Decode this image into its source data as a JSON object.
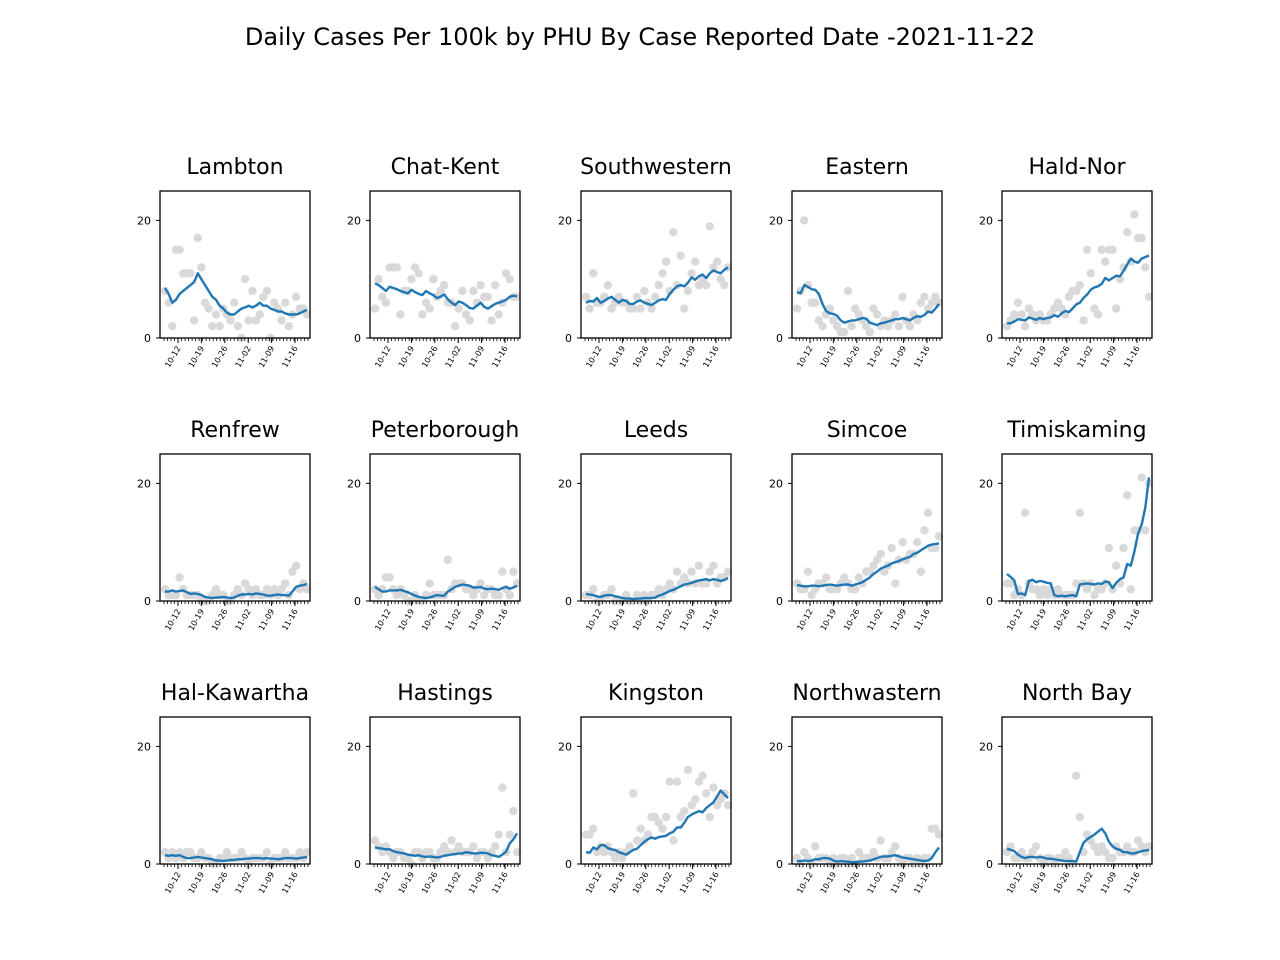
{
  "figure": {
    "title": "Daily Cases Per 100k by PHU By Case Reported Date -2021-11-22",
    "colors": {
      "line": "#1f77b4",
      "scatter": "#d9d9d9",
      "axes": "#000000",
      "background": "#ffffff"
    }
  },
  "chart_data": [
    {
      "type": "scatter+line",
      "title": "Lambton",
      "x_tick_labels": [
        "10-12",
        "10-19",
        "10-26",
        "11-02",
        "11-09",
        "11-16"
      ],
      "ylim": [
        0,
        25
      ],
      "y_ticks": [
        0,
        20
      ],
      "points": [
        8,
        6,
        2,
        15,
        15,
        11,
        11,
        11,
        3,
        17,
        12,
        6,
        5,
        2,
        4,
        2,
        5,
        4,
        3,
        6,
        2,
        0,
        10,
        3,
        8,
        3,
        4,
        7,
        8,
        0,
        6,
        5,
        3,
        6,
        2,
        4,
        7,
        5,
        5,
        4
      ],
      "rolling_avg": [
        8.5,
        7.5,
        6,
        6.5,
        7.5,
        8,
        8.5,
        9,
        9.5,
        11,
        10,
        9,
        8,
        7,
        6.5,
        5.5,
        5,
        4.3,
        4,
        4,
        4.5,
        5,
        5.2,
        5.5,
        5.2,
        5.5,
        6,
        5.5,
        5.5,
        5,
        4.8,
        4.5,
        4.5,
        4.2,
        4,
        4,
        4,
        4.2,
        4.5,
        4.8
      ]
    },
    {
      "type": "scatter+line",
      "title": "Chat-Kent",
      "x_tick_labels": [
        "10-12",
        "10-19",
        "10-26",
        "11-02",
        "11-09",
        "11-16"
      ],
      "ylim": [
        0,
        25
      ],
      "y_ticks": [
        0,
        20
      ],
      "points": [
        5,
        10,
        7,
        6,
        12,
        12,
        12,
        4,
        8,
        8,
        10,
        12,
        11,
        4,
        6,
        5,
        10,
        7,
        8,
        9,
        6,
        6,
        2,
        5,
        8,
        4,
        3,
        8,
        6,
        9,
        7,
        7,
        3,
        9,
        4,
        6,
        11,
        10,
        7,
        7
      ],
      "rolling_avg": [
        9.3,
        9,
        8.5,
        8,
        8.7,
        8.5,
        8.3,
        8,
        7.8,
        7.6,
        8.2,
        7.8,
        7.5,
        7.3,
        8,
        7.6,
        7.3,
        6.8,
        7,
        7.4,
        6.6,
        6,
        5.6,
        6.2,
        6,
        5.6,
        5.1,
        5,
        5.5,
        6,
        5.3,
        5,
        5.4,
        5.8,
        6,
        6.2,
        6.5,
        7,
        7.2,
        7.1
      ]
    },
    {
      "type": "scatter+line",
      "title": "Southwestern",
      "x_tick_labels": [
        "10-12",
        "10-19",
        "10-26",
        "11-02",
        "11-09",
        "11-16"
      ],
      "ylim": [
        0,
        25
      ],
      "y_ticks": [
        0,
        20
      ],
      "points": [
        7,
        5,
        11,
        6,
        6,
        7,
        9,
        5,
        6,
        7,
        6,
        6,
        5,
        5,
        7,
        5,
        8,
        6,
        5,
        7,
        9,
        11,
        13,
        8,
        18,
        9,
        14,
        5,
        8,
        11,
        13,
        9,
        10,
        9,
        19,
        12,
        13,
        10,
        9,
        12
      ],
      "rolling_avg": [
        6,
        6.3,
        6.2,
        6.8,
        6,
        6.3,
        6.7,
        7,
        6.5,
        6,
        6.5,
        6.3,
        5.8,
        5.8,
        6.2,
        6.4,
        6,
        5.8,
        5.6,
        6,
        6.4,
        6.6,
        6.5,
        7.5,
        8.2,
        8.8,
        9,
        8.8,
        9.4,
        10.3,
        9.9,
        10.5,
        10.8,
        10.2,
        11,
        11.5,
        11.2,
        11,
        11.6,
        12
      ]
    },
    {
      "type": "scatter+line",
      "title": "Eastern",
      "x_tick_labels": [
        "10-12",
        "10-19",
        "10-26",
        "11-02",
        "11-09",
        "11-16"
      ],
      "ylim": [
        0,
        25
      ],
      "y_ticks": [
        0,
        20
      ],
      "points": [
        5,
        8,
        20,
        9,
        6,
        6,
        3,
        2,
        4,
        5,
        3,
        2,
        1,
        1,
        8,
        2,
        5,
        4,
        3,
        2,
        1,
        5,
        4,
        2,
        3,
        2,
        3,
        4,
        2,
        7,
        3,
        2,
        4,
        3,
        6,
        7,
        5,
        6,
        7,
        6
      ],
      "rolling_avg": [
        7.8,
        7.6,
        9,
        8.7,
        8.3,
        8.2,
        7.5,
        5.8,
        4.6,
        4.2,
        4.1,
        3.8,
        3,
        2.6,
        2.8,
        3,
        3,
        3.2,
        3.4,
        3.3,
        2.6,
        2.4,
        2.2,
        2.5,
        2.6,
        2.8,
        3,
        3.2,
        3.2,
        3.4,
        3.2,
        3,
        3.4,
        3.7,
        3.6,
        3.9,
        4.5,
        4.3,
        5,
        5.8
      ]
    },
    {
      "type": "scatter+line",
      "title": "Hald-Nor",
      "x_tick_labels": [
        "10-12",
        "10-19",
        "10-26",
        "11-02",
        "11-09",
        "11-16"
      ],
      "ylim": [
        0,
        25
      ],
      "y_ticks": [
        0,
        20
      ],
      "points": [
        2,
        3,
        4,
        6,
        4,
        2,
        5,
        4,
        3,
        4,
        3,
        3,
        4,
        5,
        6,
        5,
        4,
        7,
        8,
        8,
        9,
        3,
        15,
        11,
        5,
        4,
        15,
        13,
        15,
        15,
        5,
        10,
        12,
        18,
        13,
        21,
        17,
        17,
        12,
        7
      ],
      "rolling_avg": [
        2.5,
        2.5,
        2.8,
        3.2,
        3.1,
        3,
        3.5,
        3.3,
        3.1,
        3.4,
        3.2,
        3.4,
        3.5,
        3.9,
        3.6,
        4.2,
        4.6,
        4.4,
        5,
        5.7,
        6,
        6.8,
        7.4,
        8.2,
        8.6,
        8.8,
        9.2,
        10.2,
        9.8,
        10.2,
        10.6,
        10.5,
        11.4,
        12.5,
        13.5,
        13,
        12.8,
        13.5,
        13.8,
        14
      ]
    },
    {
      "type": "scatter+line",
      "title": "Renfrew",
      "x_tick_labels": [
        "10-12",
        "10-19",
        "10-26",
        "11-02",
        "11-09",
        "11-16"
      ],
      "ylim": [
        0,
        25
      ],
      "y_ticks": [
        0,
        20
      ],
      "points": [
        2,
        1,
        1,
        1,
        4,
        2,
        1,
        1,
        1,
        1,
        0,
        0,
        0,
        1,
        2,
        1,
        1,
        0,
        0,
        1,
        2,
        1,
        3,
        2,
        1,
        2,
        1,
        1,
        2,
        1,
        2,
        1,
        2,
        3,
        1,
        5,
        6,
        2,
        3,
        2
      ],
      "rolling_avg": [
        1.6,
        1.6,
        1.8,
        1.6,
        1.7,
        1.8,
        1.5,
        1.2,
        1.3,
        1.2,
        1,
        0.7,
        0.6,
        0.5,
        0.6,
        0.6,
        0.7,
        0.6,
        0.5,
        0.6,
        0.9,
        1.1,
        1.1,
        1.2,
        1.1,
        1.3,
        1.2,
        1.1,
        0.9,
        0.9,
        1,
        1.1,
        1,
        1,
        0.9,
        1.6,
        2.4,
        2.6,
        2.7,
        2.9
      ]
    },
    {
      "type": "scatter+line",
      "title": "Peterborough",
      "x_tick_labels": [
        "10-12",
        "10-19",
        "10-26",
        "11-02",
        "11-09",
        "11-16"
      ],
      "ylim": [
        0,
        25
      ],
      "y_ticks": [
        0,
        20
      ],
      "points": [
        2,
        1,
        2,
        4,
        4,
        2,
        1,
        2,
        1,
        0,
        0,
        1,
        0,
        0,
        1,
        3,
        1,
        1,
        1,
        1,
        7,
        2,
        3,
        3,
        3,
        2,
        2,
        1,
        2,
        3,
        1,
        2,
        2,
        1,
        1,
        5,
        2,
        1,
        5,
        3
      ],
      "rolling_avg": [
        2.4,
        2,
        1.6,
        1.6,
        1.8,
        1.8,
        1.8,
        1.9,
        1.7,
        1.5,
        1.2,
        0.9,
        0.7,
        0.6,
        0.5,
        0.6,
        0.8,
        1,
        0.9,
        0.9,
        1.6,
        2,
        2.4,
        2.6,
        2.8,
        2.7,
        2.6,
        2.3,
        2.3,
        2.4,
        2.1,
        2,
        2.1,
        2,
        1.9,
        2.2,
        2.4,
        2.1,
        2.3,
        2.6
      ]
    },
    {
      "type": "scatter+line",
      "title": "Leeds",
      "x_tick_labels": [
        "10-12",
        "10-19",
        "10-26",
        "11-02",
        "11-09",
        "11-16"
      ],
      "ylim": [
        0,
        25
      ],
      "y_ticks": [
        0,
        20
      ],
      "points": [
        1,
        1,
        2,
        0,
        0,
        1,
        1,
        2,
        0,
        0,
        0,
        1,
        0,
        0,
        1,
        0,
        1,
        0,
        1,
        1,
        2,
        1,
        2,
        3,
        2,
        5,
        3,
        4,
        3,
        5,
        3,
        6,
        3,
        3,
        5,
        6,
        3,
        4,
        4,
        5
      ],
      "rolling_avg": [
        1.2,
        1.1,
        1,
        0.8,
        0.7,
        0.9,
        1,
        1,
        0.8,
        0.7,
        0.5,
        0.4,
        0.4,
        0.3,
        0.4,
        0.4,
        0.5,
        0.5,
        0.5,
        0.6,
        0.9,
        1.1,
        1.4,
        1.7,
        1.9,
        2.2,
        2.5,
        2.8,
        2.9,
        3.1,
        3.3,
        3.5,
        3.6,
        3.7,
        3.5,
        3.7,
        3.6,
        3.4,
        3.6,
        3.9
      ]
    },
    {
      "type": "scatter+line",
      "title": "Simcoe",
      "x_tick_labels": [
        "10-12",
        "10-19",
        "10-26",
        "11-02",
        "11-09",
        "11-16"
      ],
      "ylim": [
        0,
        25
      ],
      "y_ticks": [
        0,
        20
      ],
      "points": [
        3,
        2,
        2,
        5,
        1,
        2,
        3,
        3,
        4,
        2,
        2,
        2,
        3,
        4,
        3,
        2,
        2,
        4,
        3,
        5,
        5,
        6,
        7,
        8,
        5,
        6,
        9,
        3,
        7,
        10,
        7,
        8,
        8,
        10,
        5,
        12,
        15,
        9,
        9,
        11
      ],
      "rolling_avg": [
        2.7,
        2.6,
        2.5,
        2.5,
        2.6,
        2.6,
        2.5,
        2.6,
        2.7,
        2.8,
        2.7,
        2.6,
        2.7,
        2.8,
        2.8,
        2.6,
        2.8,
        3,
        3.2,
        3.6,
        4,
        4.6,
        5,
        5.5,
        5.8,
        6,
        6.4,
        6.6,
        6.8,
        7.1,
        7.3,
        7.5,
        8,
        8.2,
        8.6,
        9,
        9.4,
        9.6,
        9.7,
        9.8
      ]
    },
    {
      "type": "scatter+line",
      "title": "Timiskaming",
      "x_tick_labels": [
        "10-12",
        "10-19",
        "10-26",
        "11-02",
        "11-09",
        "11-16"
      ],
      "ylim": [
        0,
        25
      ],
      "y_ticks": [
        0,
        20
      ],
      "points": [
        3,
        3,
        1,
        2,
        1,
        15,
        3,
        2,
        2,
        1,
        2,
        1,
        2,
        1,
        2,
        1,
        1,
        1,
        1,
        3,
        15,
        3,
        2,
        3,
        1,
        2,
        2,
        3,
        9,
        2,
        6,
        3,
        9,
        18,
        2,
        12,
        12,
        21,
        12,
        20
      ],
      "rolling_avg": [
        4.6,
        4.1,
        3.5,
        1.2,
        1.3,
        1,
        3.4,
        3.6,
        3.2,
        3.4,
        3.3,
        3.1,
        3,
        1,
        0.8,
        0.9,
        0.8,
        0.9,
        1,
        0.8,
        2.8,
        2.9,
        3,
        2.9,
        2.8,
        3,
        2.9,
        3.3,
        3.2,
        2.2,
        3.1,
        3.7,
        4,
        6.3,
        6,
        8.4,
        11.5,
        13,
        16,
        21
      ]
    },
    {
      "type": "scatter+line",
      "title": "Hal-Kawartha",
      "x_tick_labels": [
        "10-12",
        "10-19",
        "10-26",
        "11-02",
        "11-09",
        "11-16"
      ],
      "ylim": [
        0,
        25
      ],
      "y_ticks": [
        0,
        20
      ],
      "points": [
        2,
        1,
        2,
        1,
        2,
        1,
        2,
        2,
        1,
        1,
        2,
        1,
        1,
        0,
        0,
        1,
        1,
        2,
        1,
        1,
        1,
        2,
        1,
        0,
        1,
        1,
        1,
        1,
        2,
        0,
        1,
        1,
        1,
        2,
        1,
        1,
        1,
        2,
        1,
        2
      ],
      "rolling_avg": [
        1.5,
        1.4,
        1.5,
        1.4,
        1.5,
        1.2,
        1,
        1,
        1.1,
        1.2,
        1.1,
        1,
        0.9,
        0.8,
        0.6,
        0.6,
        0.5,
        0.6,
        0.7,
        0.7,
        0.8,
        0.8,
        0.9,
        0.9,
        1,
        1,
        1,
        0.9,
        1,
        0.9,
        0.9,
        0.8,
        0.9,
        1,
        1,
        1,
        0.9,
        1,
        1.1,
        1.2
      ]
    },
    {
      "type": "scatter+line",
      "title": "Hastings",
      "x_tick_labels": [
        "10-12",
        "10-19",
        "10-26",
        "11-02",
        "11-09",
        "11-16"
      ],
      "ylim": [
        0,
        25
      ],
      "y_ticks": [
        0,
        20
      ],
      "points": [
        4,
        3,
        2,
        3,
        2,
        1,
        2,
        2,
        1,
        1,
        0,
        2,
        2,
        1,
        2,
        2,
        1,
        1,
        2,
        3,
        2,
        4,
        2,
        3,
        2,
        2,
        2,
        3,
        1,
        2,
        2,
        1,
        2,
        3,
        5,
        13,
        2,
        5,
        9,
        2
      ],
      "rolling_avg": [
        2.8,
        2.7,
        2.6,
        2.5,
        2.5,
        2.2,
        2,
        1.9,
        1.8,
        1.6,
        1.5,
        1.4,
        1.5,
        1.3,
        1.2,
        1.3,
        1.2,
        1.1,
        1.2,
        1.4,
        1.5,
        1.6,
        1.7,
        1.8,
        1.8,
        2,
        1.9,
        1.8,
        1.8,
        1.9,
        1.9,
        1.8,
        1.5,
        1.4,
        1.2,
        1.6,
        2.1,
        3.5,
        4.2,
        5.2
      ]
    },
    {
      "type": "scatter+line",
      "title": "Kingston",
      "x_tick_labels": [
        "10-12",
        "10-19",
        "10-26",
        "11-02",
        "11-09",
        "11-16"
      ],
      "ylim": [
        0,
        25
      ],
      "y_ticks": [
        0,
        20
      ],
      "points": [
        5,
        5,
        6,
        2,
        3,
        2,
        3,
        2,
        1,
        2,
        1,
        2,
        3,
        12,
        4,
        6,
        4,
        5,
        8,
        8,
        7,
        6,
        8,
        14,
        4,
        14,
        8,
        9,
        16,
        10,
        11,
        14,
        15,
        12,
        8,
        13,
        10,
        11,
        12,
        10
      ],
      "rolling_avg": [
        2,
        1.9,
        2.8,
        2.5,
        3.2,
        3.2,
        2.7,
        2.5,
        2.4,
        2,
        1.8,
        1.6,
        2,
        2.4,
        2.6,
        3.2,
        3.8,
        4.2,
        4.5,
        4.3,
        4.6,
        4.7,
        4.8,
        5.2,
        5.5,
        6.2,
        6.2,
        7,
        8,
        8.4,
        8.7,
        9,
        8.8,
        9.5,
        10,
        10.5,
        11.5,
        12.5,
        11.8,
        11.2
      ]
    },
    {
      "type": "scatter+line",
      "title": "Northwastern",
      "x_tick_labels": [
        "10-12",
        "10-19",
        "10-26",
        "11-02",
        "11-09",
        "11-16"
      ],
      "ylim": [
        0,
        25
      ],
      "y_ticks": [
        0,
        20
      ],
      "points": [
        1,
        0,
        2,
        1,
        0,
        3,
        1,
        1,
        1,
        0,
        1,
        0,
        1,
        1,
        0,
        1,
        0,
        2,
        1,
        1,
        1,
        2,
        1,
        4,
        1,
        1,
        2,
        3,
        1,
        0,
        1,
        1,
        0,
        1,
        0,
        1,
        1,
        6,
        6,
        5
      ],
      "rolling_avg": [
        0.5,
        0.5,
        0.6,
        0.5,
        0.6,
        0.8,
        0.8,
        1,
        1,
        0.9,
        0.6,
        0.4,
        0.5,
        0.4,
        0.4,
        0.3,
        0.3,
        0.4,
        0.4,
        0.5,
        0.6,
        0.8,
        1,
        1.2,
        1.3,
        1.3,
        1.4,
        1.5,
        1.3,
        1.1,
        1,
        0.9,
        0.8,
        0.7,
        0.6,
        0.5,
        0.6,
        1,
        2,
        2.8
      ]
    },
    {
      "type": "scatter+line",
      "title": "North Bay",
      "x_tick_labels": [
        "10-12",
        "10-19",
        "10-26",
        "11-02",
        "11-09",
        "11-16"
      ],
      "ylim": [
        0,
        25
      ],
      "y_ticks": [
        0,
        20
      ],
      "points": [
        2,
        3,
        1,
        1,
        2,
        1,
        1,
        2,
        3,
        1,
        0,
        1,
        1,
        0,
        1,
        1,
        2,
        1,
        0,
        15,
        8,
        2,
        5,
        4,
        3,
        2,
        3,
        2,
        1,
        1,
        3,
        2,
        2,
        3,
        2,
        2,
        4,
        3,
        2,
        3
      ],
      "rolling_avg": [
        2.6,
        2.4,
        2.2,
        1.6,
        1.2,
        1,
        1.2,
        1.2,
        1.1,
        1.2,
        1.1,
        0.9,
        0.9,
        0.8,
        0.7,
        0.6,
        0.5,
        0.5,
        0.5,
        0.4,
        2,
        3.6,
        4.2,
        4.6,
        5,
        5.5,
        6,
        5.2,
        3.8,
        3,
        2.6,
        2.4,
        2,
        2,
        1.8,
        1.8,
        2,
        2.2,
        2.3,
        2.4
      ]
    }
  ]
}
